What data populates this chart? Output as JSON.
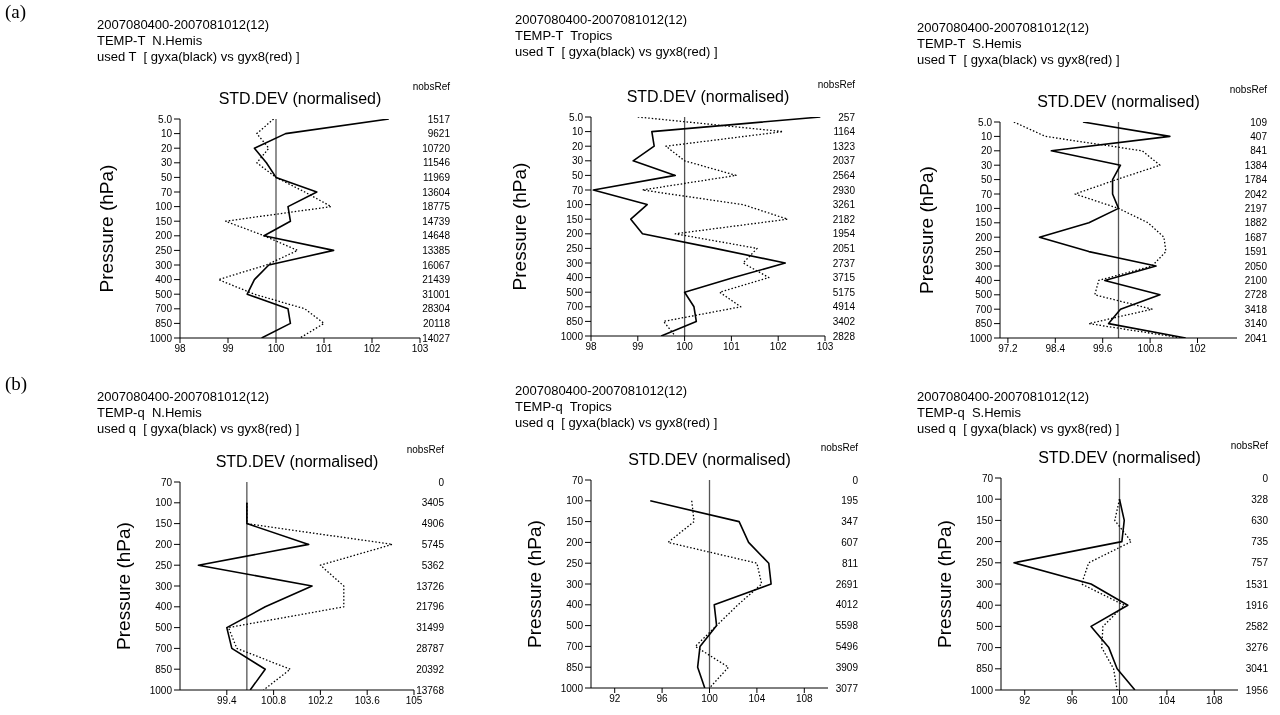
{
  "chart_data": [
    {
      "type": "line",
      "orientation": "horizontal",
      "title": "2007080400-2007081012(12)",
      "subtitle": "TEMP-T  N.Hemis",
      "annotations": [
        "used T  [ gyxa(black) vs gyx8(red) ]",
        "(a)"
      ],
      "xlabel": "STD.DEV (normalised)",
      "ylabel": "Pressure (hPa)",
      "y2label": "nobsRef",
      "categories": [
        "5.0",
        "10",
        "20",
        "30",
        "50",
        "70",
        "100",
        "150",
        "200",
        "250",
        "300",
        "400",
        "500",
        "700",
        "850",
        "1000"
      ],
      "y2_categories": [
        "1517",
        "9621",
        "10720",
        "11546",
        "11969",
        "13604",
        "18775",
        "14739",
        "14648",
        "13385",
        "16067",
        "21439",
        "31001",
        "28304",
        "20118",
        "14027"
      ],
      "series": [
        {
          "color": "#000000",
          "line_style": "solid",
          "values": [
            102.35,
            100.2,
            99.55,
            99.8,
            100.0,
            100.85,
            100.25,
            100.3,
            99.75,
            101.2,
            99.85,
            99.55,
            99.4,
            100.25,
            100.3,
            99.7
          ]
        },
        {
          "color": "#000000",
          "line_style": "dotted",
          "values": [
            99.95,
            99.6,
            99.85,
            99.6,
            100.0,
            100.6,
            101.15,
            98.95,
            99.75,
            100.45,
            99.8,
            98.8,
            99.55,
            100.6,
            101.0,
            100.5
          ]
        }
      ],
      "xlim": [
        98,
        103
      ],
      "xticks": [
        98,
        99,
        100,
        101,
        102,
        103
      ],
      "ref_lines": [
        {
          "axis": "x",
          "value": 100,
          "color": "#555555"
        }
      ],
      "marker": "none"
    },
    {
      "type": "line",
      "orientation": "horizontal",
      "title": "2007080400-2007081012(12)",
      "subtitle": "TEMP-T  Tropics",
      "annotations": [
        "used T  [ gyxa(black) vs gyx8(red) ]"
      ],
      "xlabel": "STD.DEV (normalised)",
      "ylabel": "Pressure (hPa)",
      "y2label": "nobsRef",
      "categories": [
        "5.0",
        "10",
        "20",
        "30",
        "50",
        "70",
        "100",
        "150",
        "200",
        "250",
        "300",
        "400",
        "500",
        "700",
        "850",
        "1000"
      ],
      "y2_categories": [
        "257",
        "1164",
        "1323",
        "2037",
        "2564",
        "2930",
        "3261",
        "2182",
        "1954",
        "2051",
        "2737",
        "3715",
        "5175",
        "4914",
        "3402",
        "2828"
      ],
      "series": [
        {
          "color": "#000000",
          "line_style": "solid",
          "values": [
            102.9,
            99.3,
            99.35,
            98.9,
            99.8,
            98.05,
            99.2,
            98.85,
            99.1,
            100.65,
            102.15,
            101.05,
            100.0,
            100.2,
            100.25,
            99.5
          ]
        },
        {
          "color": "#000000",
          "line_style": "dotted",
          "values": [
            99.0,
            102.1,
            99.6,
            100.0,
            101.1,
            99.1,
            101.25,
            102.2,
            99.8,
            101.55,
            101.25,
            101.8,
            100.75,
            101.2,
            99.55,
            99.8
          ]
        }
      ],
      "xlim": [
        98,
        103
      ],
      "xticks": [
        98,
        99,
        100,
        101,
        102,
        103
      ],
      "ref_lines": [
        {
          "axis": "x",
          "value": 100,
          "color": "#555555"
        }
      ],
      "marker": "none"
    },
    {
      "type": "line",
      "orientation": "horizontal",
      "title": "2007080400-2007081012(12)",
      "subtitle": "TEMP-T  S.Hemis",
      "annotations": [
        "used T  [ gyxa(black) vs gyx8(red) ]"
      ],
      "xlabel": "STD.DEV (normalised)",
      "ylabel": "Pressure (hPa)",
      "y2label": "nobsRef",
      "categories": [
        "5.0",
        "10",
        "20",
        "30",
        "50",
        "70",
        "100",
        "150",
        "200",
        "250",
        "300",
        "400",
        "500",
        "700",
        "850",
        "1000"
      ],
      "y2_categories": [
        "109",
        "407",
        "841",
        "1384",
        "1784",
        "2042",
        "2197",
        "1882",
        "1687",
        "1591",
        "2050",
        "2100",
        "2728",
        "3418",
        "3140",
        "2041"
      ],
      "series": [
        {
          "color": "#000000",
          "line_style": "solid",
          "values": [
            99.1,
            101.3,
            98.3,
            100.05,
            99.85,
            99.85,
            100.0,
            99.25,
            98.0,
            99.25,
            100.95,
            99.65,
            101.05,
            100.05,
            99.75,
            101.7
          ]
        },
        {
          "color": "#000000",
          "line_style": "dotted",
          "values": [
            97.35,
            98.15,
            100.6,
            101.05,
            99.95,
            98.9,
            100.0,
            100.75,
            101.15,
            101.2,
            100.85,
            99.5,
            99.4,
            100.85,
            99.25,
            101.6
          ]
        }
      ],
      "xlim": [
        97,
        103
      ],
      "xticks": [
        97.2,
        98.4,
        99.6,
        100.8,
        102
      ],
      "ref_lines": [
        {
          "axis": "x",
          "value": 100,
          "color": "#555555"
        }
      ],
      "marker": "none"
    },
    {
      "type": "line",
      "orientation": "horizontal",
      "title": "2007080400-2007081012(12)",
      "subtitle": "TEMP-q  N.Hemis",
      "annotations": [
        "used q  [ gyxa(black) vs gyx8(red) ]",
        "(b)"
      ],
      "xlabel": "STD.DEV (normalised)",
      "ylabel": "Pressure (hPa)",
      "y2label": "nobsRef",
      "categories": [
        "70",
        "100",
        "150",
        "200",
        "250",
        "300",
        "400",
        "500",
        "700",
        "850",
        "1000"
      ],
      "y2_categories": [
        "0",
        "3405",
        "4906",
        "5745",
        "5362",
        "13726",
        "21796",
        "31499",
        "28787",
        "20392",
        "13768"
      ],
      "series": [
        {
          "color": "#000000",
          "line_style": "solid",
          "values": [
            null,
            100.0,
            100.0,
            101.85,
            98.55,
            101.95,
            100.55,
            99.4,
            99.55,
            100.55,
            100.1
          ]
        },
        {
          "color": "#000000",
          "line_style": "dotted",
          "values": [
            null,
            100.0,
            100.0,
            104.35,
            102.2,
            102.9,
            102.9,
            99.45,
            99.7,
            101.3,
            100.5
          ]
        }
      ],
      "xlim": [
        98,
        105
      ],
      "xticks": [
        99.4,
        100.8,
        102.2,
        103.6,
        105
      ],
      "ref_lines": [
        {
          "axis": "x",
          "value": 100,
          "color": "#555555"
        }
      ],
      "marker": "none"
    },
    {
      "type": "line",
      "orientation": "horizontal",
      "title": "2007080400-2007081012(12)",
      "subtitle": "TEMP-q  Tropics",
      "annotations": [
        "used q  [ gyxa(black) vs gyx8(red) ]"
      ],
      "xlabel": "STD.DEV (normalised)",
      "ylabel": "Pressure (hPa)",
      "y2label": "nobsRef",
      "categories": [
        "70",
        "100",
        "150",
        "200",
        "250",
        "300",
        "400",
        "500",
        "700",
        "850",
        "1000"
      ],
      "y2_categories": [
        "0",
        "195",
        "347",
        "607",
        "811",
        "2691",
        "4012",
        "5598",
        "5496",
        "3909",
        "3077"
      ],
      "series": [
        {
          "color": "#000000",
          "line_style": "solid",
          "values": [
            null,
            95.0,
            102.5,
            103.3,
            105.0,
            105.2,
            100.4,
            100.6,
            99.2,
            99.0,
            99.6
          ]
        },
        {
          "color": "#000000",
          "line_style": "dotted",
          "values": [
            null,
            98.5,
            98.7,
            96.5,
            104.0,
            104.4,
            102.4,
            100.6,
            98.8,
            101.6,
            100.0
          ]
        }
      ],
      "xlim": [
        90,
        110
      ],
      "xticks": [
        92,
        96,
        100,
        104,
        108
      ],
      "ref_lines": [
        {
          "axis": "x",
          "value": 100,
          "color": "#555555"
        }
      ],
      "marker": "none"
    },
    {
      "type": "line",
      "orientation": "horizontal",
      "title": "2007080400-2007081012(12)",
      "subtitle": "TEMP-q  S.Hemis",
      "annotations": [
        "used q  [ gyxa(black) vs gyx8(red) ]"
      ],
      "xlabel": "STD.DEV (normalised)",
      "ylabel": "Pressure (hPa)",
      "y2label": "nobsRef",
      "categories": [
        "70",
        "100",
        "150",
        "200",
        "250",
        "300",
        "400",
        "500",
        "700",
        "850",
        "1000"
      ],
      "y2_categories": [
        "0",
        "328",
        "630",
        "735",
        "757",
        "1531",
        "1916",
        "2582",
        "3276",
        "3041",
        "1956"
      ],
      "series": [
        {
          "color": "#000000",
          "line_style": "solid",
          "values": [
            null,
            100.0,
            100.4,
            100.2,
            91.1,
            97.6,
            100.7,
            97.6,
            99.1,
            99.8,
            101.3
          ]
        },
        {
          "color": "#000000",
          "line_style": "dotted",
          "values": [
            null,
            100.0,
            99.6,
            101.0,
            97.4,
            96.8,
            100.4,
            98.6,
            98.5,
            99.5,
            99.8
          ]
        }
      ],
      "xlim": [
        90,
        110
      ],
      "xticks": [
        92,
        96,
        100,
        104,
        108
      ],
      "ref_lines": [
        {
          "axis": "x",
          "value": 100,
          "color": "#555555"
        }
      ],
      "marker": "none"
    }
  ]
}
